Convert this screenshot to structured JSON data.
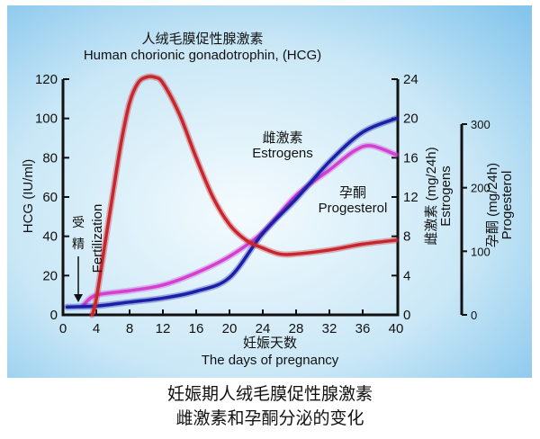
{
  "chart_data": {
    "type": "line",
    "title_cn": "人绒毛膜促性腺激素",
    "title_en": "Human chorionic gonadotrophin, (HCG)",
    "xlabel_cn": "妊娠天数",
    "xlabel_en": "The days of pregnancy",
    "xlim": [
      0,
      40
    ],
    "xticks": [
      "0",
      "4",
      "8",
      "12",
      "16",
      "20",
      "24",
      "28",
      "32",
      "36",
      "40"
    ],
    "axes": {
      "left": {
        "label": "HCG (IU/ml)",
        "ylim": [
          0,
          120
        ],
        "ticks": [
          "0",
          "20",
          "40",
          "60",
          "80",
          "100",
          "120"
        ]
      },
      "right": {
        "label_cn": "雌激素 (mg/24h)",
        "label_en": "Estrogens",
        "ylim": [
          0,
          24
        ],
        "ticks": [
          "0",
          "4",
          "8",
          "12",
          "16",
          "20",
          "24"
        ]
      },
      "far_right": {
        "label_cn": "孕酮 (mg/24h)",
        "label_en": "Progesterol",
        "ylim": [
          0,
          300
        ],
        "ticks": [
          "0",
          "100",
          "200",
          "300"
        ]
      }
    },
    "series": [
      {
        "name": "HCG",
        "axis": "left",
        "color": "#c8262c",
        "x": [
          3.5,
          4,
          5,
          6,
          7,
          8,
          9,
          10,
          11,
          12,
          14,
          16,
          18,
          20,
          22,
          24,
          26,
          28,
          32,
          36,
          40
        ],
        "y": [
          0,
          8,
          35,
          62,
          88,
          108,
          118,
          121,
          121,
          118,
          102,
          80,
          60,
          46,
          38,
          34,
          31,
          31,
          33,
          36,
          38
        ]
      },
      {
        "name_cn": "雌激素",
        "name": "Estrogens",
        "axis": "right",
        "color": "#1a1fa8",
        "x": [
          0.5,
          4,
          8,
          12,
          16,
          20,
          24,
          28,
          32,
          36,
          40
        ],
        "y": [
          0.8,
          0.9,
          1.3,
          1.7,
          2.4,
          3.8,
          8.3,
          11.8,
          15.6,
          18.6,
          20
        ]
      },
      {
        "name_cn": "孕酮",
        "name": "Progesterol",
        "axis": "far_right",
        "color": "#d33fd0",
        "x": [
          2.5,
          4,
          8,
          12,
          16,
          20,
          24,
          28,
          32,
          35,
          37,
          40
        ],
        "y": [
          16,
          31,
          38,
          47,
          66,
          92,
          130,
          188,
          228,
          258,
          266,
          252
        ]
      }
    ],
    "annotation": {
      "fertilization_cn": [
        "受",
        "精"
      ],
      "fertilization_en": "Fertilization"
    }
  },
  "caption": [
    "妊娠期人绒毛膜促性腺激素",
    "雌激素和孕酮分泌的变化"
  ],
  "colors": {
    "background_top": "#cfe9f6",
    "background_bottom": "#8fcbed"
  }
}
